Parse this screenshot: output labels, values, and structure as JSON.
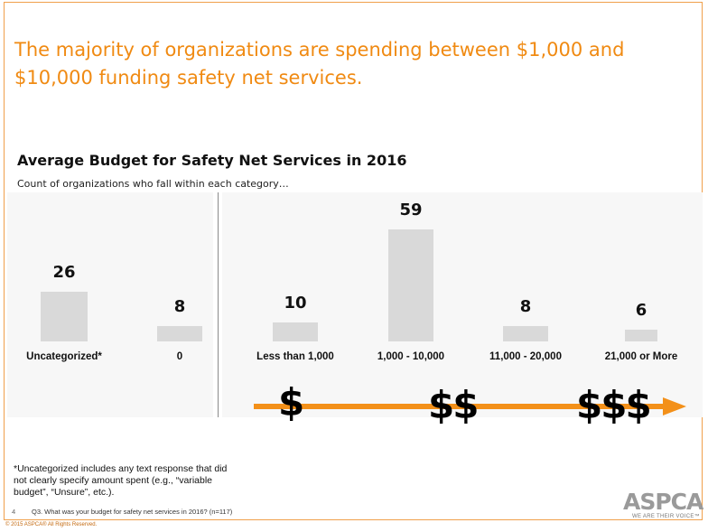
{
  "headline": "The majority of organizations are spending between $1,000 and $10,000 funding safety net services.",
  "chart_data": {
    "type": "bar",
    "title": "Average Budget for Safety Net Services in 2016",
    "subtitle": "Count of organizations who fall within each category…",
    "categories": [
      "Uncategorized*",
      "0",
      "Less than 1,000",
      "1,000 - 10,000",
      "11,000 - 20,000",
      "21,000 or More"
    ],
    "values": [
      26,
      8,
      10,
      59,
      8,
      6
    ],
    "ylim": [
      0,
      59
    ],
    "grid": false,
    "legend": "none",
    "bar_color": "#d9d9d9"
  },
  "scale_symbols": [
    "$",
    "$$",
    "$$$"
  ],
  "footnote": "*Uncategorized includes any text response that did not clearly specify amount spent (e.g., “variable budget”, “Unsure”, etc.).",
  "page_number": "4",
  "question": "Q3. What was your budget for safety net services in 2016? (n=117)",
  "copyright": "© 2015 ASPCA® All Rights Reserved.",
  "logo": {
    "word": "ASPCA",
    "tagline": "WE ARE THEIR VOICE™"
  },
  "colors": {
    "accent": "#f08a12",
    "arrow": "#f39019",
    "frame": "#f0a04b"
  }
}
